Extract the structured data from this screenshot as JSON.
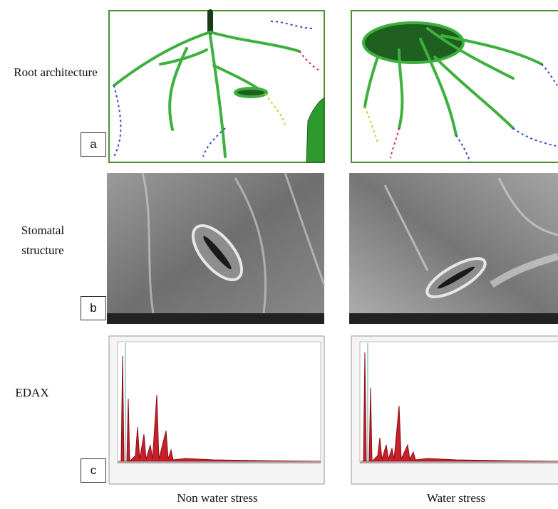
{
  "rows": [
    {
      "label": "Root architecture",
      "panel": "a"
    },
    {
      "label": "Stomatal structure",
      "panel": "b"
    },
    {
      "label": "EDAX",
      "panel": "c"
    }
  ],
  "columns": [
    "Non water stress",
    "Water stress"
  ]
}
